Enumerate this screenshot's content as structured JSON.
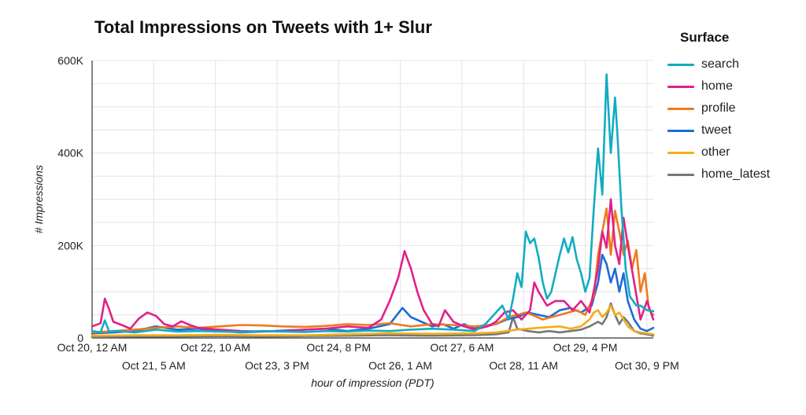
{
  "chart_data": {
    "type": "line",
    "title": "Total Impressions on Tweets with 1+ Slur",
    "xlabel": "hour of impression (PDT)",
    "ylabel": "# Impressions",
    "ylim": [
      0,
      600000
    ],
    "yticks": [
      0,
      200000,
      400000,
      600000
    ],
    "ytick_labels": [
      "0",
      "200K",
      "400K",
      "600K"
    ],
    "x_unit": "hours since Oct 20, 12 AM",
    "xlim": [
      0,
      264
    ],
    "xticks": [
      {
        "x": 0,
        "label": "Oct 20, 12 AM",
        "row": 1
      },
      {
        "x": 29,
        "label": "Oct 21, 5 AM",
        "row": 2
      },
      {
        "x": 58,
        "label": "Oct 22, 10 AM",
        "row": 1
      },
      {
        "x": 87,
        "label": "Oct 23, 3 PM",
        "row": 2
      },
      {
        "x": 116,
        "label": "Oct 24, 8 PM",
        "row": 1
      },
      {
        "x": 145,
        "label": "Oct 26, 1 AM",
        "row": 2
      },
      {
        "x": 174,
        "label": "Oct 27, 6 AM",
        "row": 1
      },
      {
        "x": 203,
        "label": "Oct 28, 11 AM",
        "row": 2
      },
      {
        "x": 232,
        "label": "Oct 29, 4 PM",
        "row": 1
      },
      {
        "x": 261,
        "label": "Oct 30, 9 PM",
        "row": 2
      }
    ],
    "grid": true,
    "legend_title": "Surface",
    "legend_position": "right",
    "series": [
      {
        "name": "search",
        "color": "#12acc1",
        "points": [
          [
            0,
            15000
          ],
          [
            4,
            12000
          ],
          [
            6,
            38000
          ],
          [
            8,
            14000
          ],
          [
            12,
            15000
          ],
          [
            20,
            12000
          ],
          [
            30,
            18000
          ],
          [
            40,
            14000
          ],
          [
            50,
            15000
          ],
          [
            60,
            14000
          ],
          [
            70,
            13000
          ],
          [
            80,
            15000
          ],
          [
            90,
            14000
          ],
          [
            100,
            13000
          ],
          [
            110,
            15000
          ],
          [
            120,
            14000
          ],
          [
            130,
            16000
          ],
          [
            140,
            15000
          ],
          [
            150,
            18000
          ],
          [
            160,
            20000
          ],
          [
            170,
            18000
          ],
          [
            180,
            15000
          ],
          [
            185,
            30000
          ],
          [
            190,
            55000
          ],
          [
            193,
            70000
          ],
          [
            196,
            40000
          ],
          [
            198,
            85000
          ],
          [
            200,
            140000
          ],
          [
            202,
            110000
          ],
          [
            204,
            230000
          ],
          [
            206,
            205000
          ],
          [
            208,
            215000
          ],
          [
            210,
            175000
          ],
          [
            212,
            120000
          ],
          [
            214,
            85000
          ],
          [
            216,
            100000
          ],
          [
            218,
            140000
          ],
          [
            220,
            180000
          ],
          [
            222,
            215000
          ],
          [
            224,
            185000
          ],
          [
            226,
            218000
          ],
          [
            228,
            170000
          ],
          [
            230,
            140000
          ],
          [
            232,
            100000
          ],
          [
            234,
            130000
          ],
          [
            236,
            280000
          ],
          [
            238,
            410000
          ],
          [
            240,
            310000
          ],
          [
            242,
            570000
          ],
          [
            244,
            400000
          ],
          [
            246,
            520000
          ],
          [
            247,
            450000
          ],
          [
            249,
            280000
          ],
          [
            251,
            150000
          ],
          [
            253,
            90000
          ],
          [
            256,
            70000
          ],
          [
            258,
            70000
          ],
          [
            261,
            60000
          ],
          [
            264,
            58000
          ]
        ]
      },
      {
        "name": "home",
        "color": "#e0218a",
        "points": [
          [
            0,
            25000
          ],
          [
            4,
            32000
          ],
          [
            6,
            85000
          ],
          [
            8,
            62000
          ],
          [
            10,
            35000
          ],
          [
            14,
            28000
          ],
          [
            18,
            20000
          ],
          [
            22,
            42000
          ],
          [
            26,
            55000
          ],
          [
            30,
            48000
          ],
          [
            34,
            30000
          ],
          [
            38,
            25000
          ],
          [
            42,
            36000
          ],
          [
            46,
            28000
          ],
          [
            50,
            22000
          ],
          [
            60,
            18000
          ],
          [
            70,
            15000
          ],
          [
            80,
            14000
          ],
          [
            90,
            15000
          ],
          [
            100,
            18000
          ],
          [
            110,
            20000
          ],
          [
            120,
            25000
          ],
          [
            130,
            22000
          ],
          [
            136,
            40000
          ],
          [
            140,
            80000
          ],
          [
            144,
            130000
          ],
          [
            147,
            188000
          ],
          [
            150,
            150000
          ],
          [
            153,
            100000
          ],
          [
            156,
            60000
          ],
          [
            160,
            30000
          ],
          [
            163,
            25000
          ],
          [
            166,
            60000
          ],
          [
            170,
            35000
          ],
          [
            175,
            25000
          ],
          [
            180,
            18000
          ],
          [
            186,
            25000
          ],
          [
            190,
            35000
          ],
          [
            194,
            55000
          ],
          [
            198,
            60000
          ],
          [
            202,
            40000
          ],
          [
            206,
            60000
          ],
          [
            208,
            120000
          ],
          [
            210,
            100000
          ],
          [
            214,
            70000
          ],
          [
            218,
            80000
          ],
          [
            222,
            80000
          ],
          [
            226,
            60000
          ],
          [
            230,
            80000
          ],
          [
            234,
            55000
          ],
          [
            238,
            150000
          ],
          [
            240,
            230000
          ],
          [
            242,
            195000
          ],
          [
            244,
            300000
          ],
          [
            246,
            200000
          ],
          [
            248,
            160000
          ],
          [
            250,
            260000
          ],
          [
            252,
            200000
          ],
          [
            255,
            120000
          ],
          [
            258,
            40000
          ],
          [
            261,
            80000
          ],
          [
            264,
            40000
          ]
        ]
      },
      {
        "name": "profile",
        "color": "#f07a1c",
        "points": [
          [
            0,
            12000
          ],
          [
            10,
            15000
          ],
          [
            20,
            18000
          ],
          [
            30,
            22000
          ],
          [
            40,
            25000
          ],
          [
            50,
            22000
          ],
          [
            60,
            25000
          ],
          [
            70,
            28000
          ],
          [
            80,
            27000
          ],
          [
            90,
            25000
          ],
          [
            100,
            24000
          ],
          [
            110,
            26000
          ],
          [
            120,
            30000
          ],
          [
            130,
            28000
          ],
          [
            140,
            32000
          ],
          [
            150,
            25000
          ],
          [
            160,
            30000
          ],
          [
            170,
            28000
          ],
          [
            180,
            25000
          ],
          [
            190,
            30000
          ],
          [
            196,
            45000
          ],
          [
            200,
            50000
          ],
          [
            204,
            55000
          ],
          [
            208,
            48000
          ],
          [
            212,
            40000
          ],
          [
            216,
            45000
          ],
          [
            220,
            50000
          ],
          [
            224,
            55000
          ],
          [
            228,
            60000
          ],
          [
            232,
            50000
          ],
          [
            236,
            90000
          ],
          [
            238,
            180000
          ],
          [
            240,
            230000
          ],
          [
            242,
            280000
          ],
          [
            244,
            180000
          ],
          [
            246,
            275000
          ],
          [
            248,
            230000
          ],
          [
            250,
            180000
          ],
          [
            252,
            210000
          ],
          [
            254,
            150000
          ],
          [
            256,
            190000
          ],
          [
            258,
            100000
          ],
          [
            260,
            140000
          ],
          [
            262,
            60000
          ],
          [
            264,
            50000
          ]
        ]
      },
      {
        "name": "tweet",
        "color": "#1e6bd6",
        "points": [
          [
            0,
            10000
          ],
          [
            10,
            12000
          ],
          [
            20,
            15000
          ],
          [
            30,
            25000
          ],
          [
            40,
            18000
          ],
          [
            50,
            20000
          ],
          [
            60,
            15000
          ],
          [
            70,
            12000
          ],
          [
            80,
            14000
          ],
          [
            90,
            16000
          ],
          [
            100,
            18000
          ],
          [
            110,
            20000
          ],
          [
            120,
            15000
          ],
          [
            130,
            20000
          ],
          [
            140,
            30000
          ],
          [
            146,
            65000
          ],
          [
            150,
            45000
          ],
          [
            155,
            35000
          ],
          [
            160,
            25000
          ],
          [
            165,
            30000
          ],
          [
            170,
            20000
          ],
          [
            175,
            30000
          ],
          [
            180,
            20000
          ],
          [
            185,
            25000
          ],
          [
            190,
            30000
          ],
          [
            195,
            40000
          ],
          [
            200,
            45000
          ],
          [
            205,
            55000
          ],
          [
            210,
            50000
          ],
          [
            215,
            45000
          ],
          [
            220,
            60000
          ],
          [
            225,
            65000
          ],
          [
            230,
            55000
          ],
          [
            235,
            70000
          ],
          [
            238,
            120000
          ],
          [
            240,
            180000
          ],
          [
            242,
            160000
          ],
          [
            244,
            120000
          ],
          [
            246,
            150000
          ],
          [
            248,
            100000
          ],
          [
            250,
            140000
          ],
          [
            252,
            80000
          ],
          [
            255,
            40000
          ],
          [
            258,
            20000
          ],
          [
            261,
            15000
          ],
          [
            264,
            22000
          ]
        ]
      },
      {
        "name": "other",
        "color": "#f5ad1a",
        "points": [
          [
            0,
            5000
          ],
          [
            20,
            6000
          ],
          [
            40,
            6000
          ],
          [
            60,
            7000
          ],
          [
            80,
            6000
          ],
          [
            100,
            6000
          ],
          [
            120,
            8000
          ],
          [
            140,
            10000
          ],
          [
            160,
            9000
          ],
          [
            180,
            10000
          ],
          [
            190,
            12000
          ],
          [
            200,
            18000
          ],
          [
            210,
            22000
          ],
          [
            220,
            25000
          ],
          [
            225,
            20000
          ],
          [
            230,
            25000
          ],
          [
            234,
            40000
          ],
          [
            236,
            55000
          ],
          [
            238,
            60000
          ],
          [
            240,
            45000
          ],
          [
            242,
            55000
          ],
          [
            244,
            70000
          ],
          [
            246,
            50000
          ],
          [
            248,
            55000
          ],
          [
            250,
            40000
          ],
          [
            252,
            25000
          ],
          [
            255,
            15000
          ],
          [
            258,
            12000
          ],
          [
            261,
            10000
          ],
          [
            264,
            8000
          ]
        ]
      },
      {
        "name": "home_latest",
        "color": "#777777",
        "points": [
          [
            0,
            2000
          ],
          [
            20,
            3000
          ],
          [
            40,
            3000
          ],
          [
            60,
            4000
          ],
          [
            80,
            3000
          ],
          [
            100,
            4000
          ],
          [
            120,
            5000
          ],
          [
            140,
            6000
          ],
          [
            160,
            5000
          ],
          [
            180,
            6000
          ],
          [
            190,
            8000
          ],
          [
            196,
            12000
          ],
          [
            198,
            45000
          ],
          [
            200,
            20000
          ],
          [
            205,
            15000
          ],
          [
            210,
            12000
          ],
          [
            215,
            15000
          ],
          [
            220,
            12000
          ],
          [
            225,
            15000
          ],
          [
            230,
            18000
          ],
          [
            234,
            25000
          ],
          [
            236,
            30000
          ],
          [
            238,
            35000
          ],
          [
            240,
            30000
          ],
          [
            242,
            45000
          ],
          [
            244,
            75000
          ],
          [
            246,
            50000
          ],
          [
            248,
            30000
          ],
          [
            250,
            45000
          ],
          [
            252,
            35000
          ],
          [
            255,
            15000
          ],
          [
            258,
            10000
          ],
          [
            261,
            8000
          ],
          [
            264,
            5000
          ]
        ]
      }
    ]
  }
}
